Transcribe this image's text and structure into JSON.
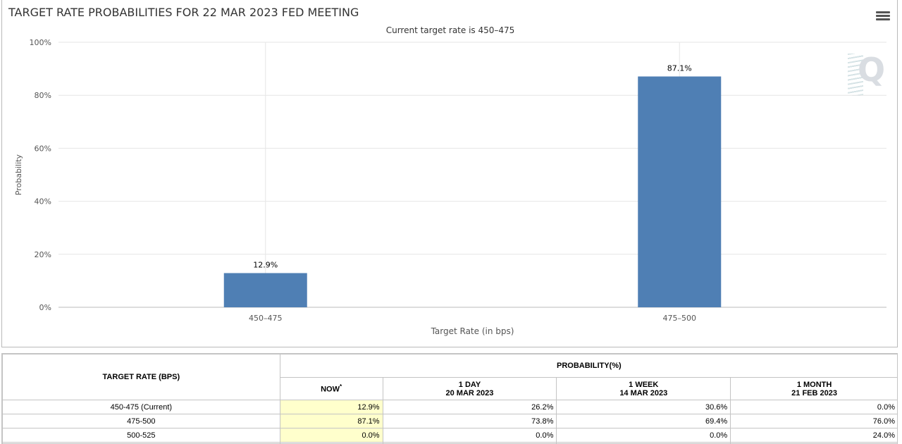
{
  "chart": {
    "title": "TARGET RATE PROBABILITIES FOR 22 MAR 2023 FED MEETING",
    "subtitle": "Current target rate is 450–475",
    "menu_icon": "hamburger-menu-icon",
    "watermark_icon": "cme-q-logo",
    "bar_color": "#4f7fb4"
  },
  "chart_data": {
    "type": "bar",
    "title": "TARGET RATE PROBABILITIES FOR 22 MAR 2023 FED MEETING",
    "subtitle": "Current target rate is 450–475",
    "categories": [
      "450–475",
      "475–500"
    ],
    "values": [
      12.9,
      87.1
    ],
    "data_labels": [
      "12.9%",
      "87.1%"
    ],
    "xlabel": "Target Rate (in bps)",
    "ylabel": "Probability",
    "ylim": [
      0,
      100
    ],
    "yticks": [
      0,
      20,
      40,
      60,
      80,
      100
    ],
    "ytick_labels": [
      "0%",
      "20%",
      "40%",
      "60%",
      "80%",
      "100%"
    ],
    "grid": true,
    "legend": "none"
  },
  "table": {
    "rate_header": "TARGET RATE (BPS)",
    "prob_header": "PROBABILITY(%)",
    "columns": [
      {
        "line1": "NOW",
        "line2": "",
        "sup": "*"
      },
      {
        "line1": "1 DAY",
        "line2": "20 MAR 2023",
        "sup": ""
      },
      {
        "line1": "1 WEEK",
        "line2": "14 MAR 2023",
        "sup": ""
      },
      {
        "line1": "1 MONTH",
        "line2": "21 FEB 2023",
        "sup": ""
      }
    ],
    "rows": [
      {
        "rate": "450-475 (Current)",
        "values": [
          "12.9%",
          "26.2%",
          "30.6%",
          "0.0%"
        ]
      },
      {
        "rate": "475-500",
        "values": [
          "87.1%",
          "73.8%",
          "69.4%",
          "76.0%"
        ]
      },
      {
        "rate": "500-525",
        "values": [
          "0.0%",
          "0.0%",
          "0.0%",
          "24.0%"
        ]
      }
    ]
  }
}
